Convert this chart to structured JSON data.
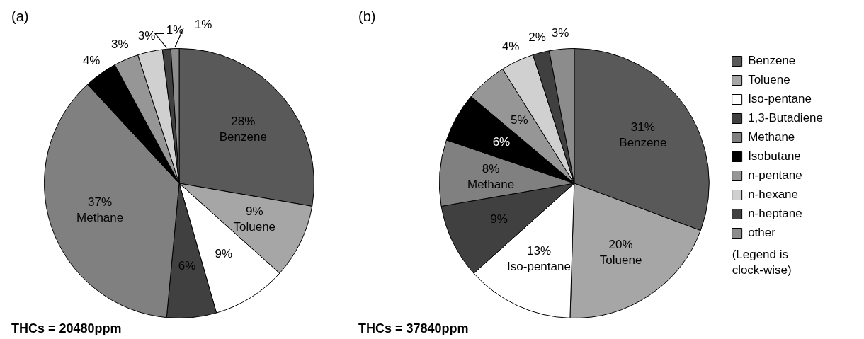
{
  "chart_data": [
    {
      "type": "pie",
      "title": "(a)",
      "categories": [
        null,
        null,
        null,
        null,
        null,
        null,
        null,
        null,
        null,
        null
      ],
      "values": [
        28,
        9,
        9,
        6,
        37,
        4,
        3,
        3,
        1,
        1
      ],
      "colors": [
        "#595959",
        "#a6a6a6",
        "#ffffff",
        "#404040",
        "#808080",
        "#000000",
        "#969696",
        "#d0d0d0",
        "#404040",
        "#8c8c8c"
      ],
      "value_labels": [
        "28%\nBenzene",
        "9%\nToluene",
        "9%",
        "6%",
        "37%\nMethane",
        "4%",
        "3%",
        "3%",
        "1%",
        "1%"
      ],
      "legend": false,
      "annotations": [
        "THCs = 20480ppm"
      ]
    },
    {
      "type": "pie",
      "title": "(b)",
      "categories": [
        "Benzene",
        "Toluene",
        "Iso-pentane",
        "1,3-Butadiene",
        "Methane",
        "Isobutane",
        "n-pentane",
        "n-hexane",
        "n-heptane",
        "other"
      ],
      "values": [
        31,
        20,
        13,
        9,
        8,
        6,
        5,
        4,
        2,
        3
      ],
      "colors": [
        "#595959",
        "#a6a6a6",
        "#ffffff",
        "#404040",
        "#808080",
        "#000000",
        "#969696",
        "#d0d0d0",
        "#404040",
        "#8c8c8c"
      ],
      "value_labels": [
        "31%\nBenzene",
        "20%\nToluene",
        "13%\nIso-pentane",
        "9%",
        "8%\nMethane",
        "6%",
        "5%",
        "4%",
        "2%",
        "3%"
      ],
      "legend": "right",
      "annotations": [
        "THCs = 37840ppm",
        "(Legend is clock-wise)"
      ]
    }
  ]
}
